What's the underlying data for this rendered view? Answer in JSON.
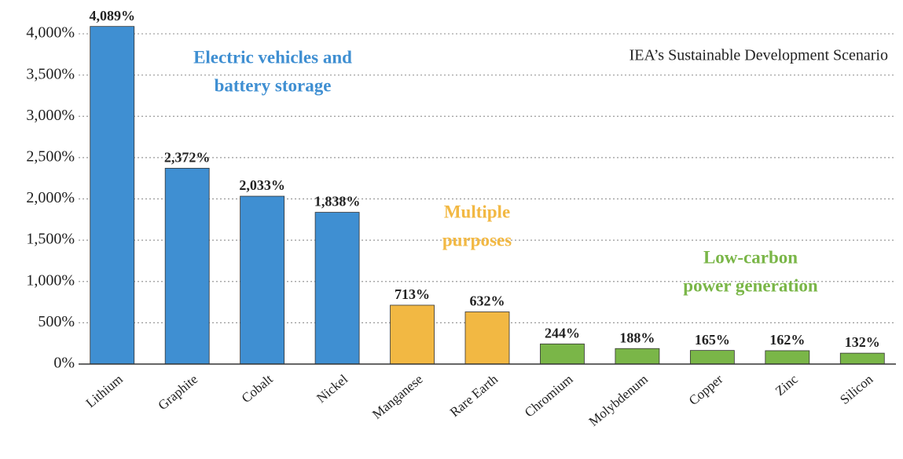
{
  "chart_data": {
    "type": "bar",
    "subtitle": "IEA’s Sustainable Development Scenario",
    "categories": [
      "Lithium",
      "Graphite",
      "Cobalt",
      "Nickel",
      "Manganese",
      "Rare Earth",
      "Chromium",
      "Molybdenum",
      "Copper",
      "Zinc",
      "Silicon"
    ],
    "values": [
      4089,
      2372,
      2033,
      1838,
      713,
      632,
      244,
      188,
      165,
      162,
      132
    ],
    "value_labels": [
      "4,089%",
      "2,372%",
      "2,033%",
      "1,838%",
      "713%",
      "632%",
      "244%",
      "188%",
      "165%",
      "162%",
      "132%"
    ],
    "colors": [
      "#3f8fd2",
      "#3f8fd2",
      "#3f8fd2",
      "#3f8fd2",
      "#f2b843",
      "#f2b843",
      "#7ab648",
      "#7ab648",
      "#7ab648",
      "#7ab648",
      "#7ab648"
    ],
    "ylim": [
      0,
      4200
    ],
    "yticks": [
      {
        "value": 0,
        "label": "0%"
      },
      {
        "value": 500,
        "label": "500%"
      },
      {
        "value": 1000,
        "label": "1,000%"
      },
      {
        "value": 1500,
        "label": "1,500%"
      },
      {
        "value": 2000,
        "label": "2,000%"
      },
      {
        "value": 2500,
        "label": "2,500%"
      },
      {
        "value": 3000,
        "label": "3,000%"
      },
      {
        "value": 3500,
        "label": "3,500%"
      },
      {
        "value": 4000,
        "label": "4,000%"
      }
    ],
    "grid": true,
    "annotations": [
      {
        "lines": [
          "Electric vehicles and",
          "battery storage"
        ],
        "color": "#3f8fd2"
      },
      {
        "lines": [
          "Multiple",
          "purposes"
        ],
        "color": "#f2b843"
      },
      {
        "lines": [
          "Low-carbon",
          "power generation"
        ],
        "color": "#7ab648"
      }
    ]
  }
}
